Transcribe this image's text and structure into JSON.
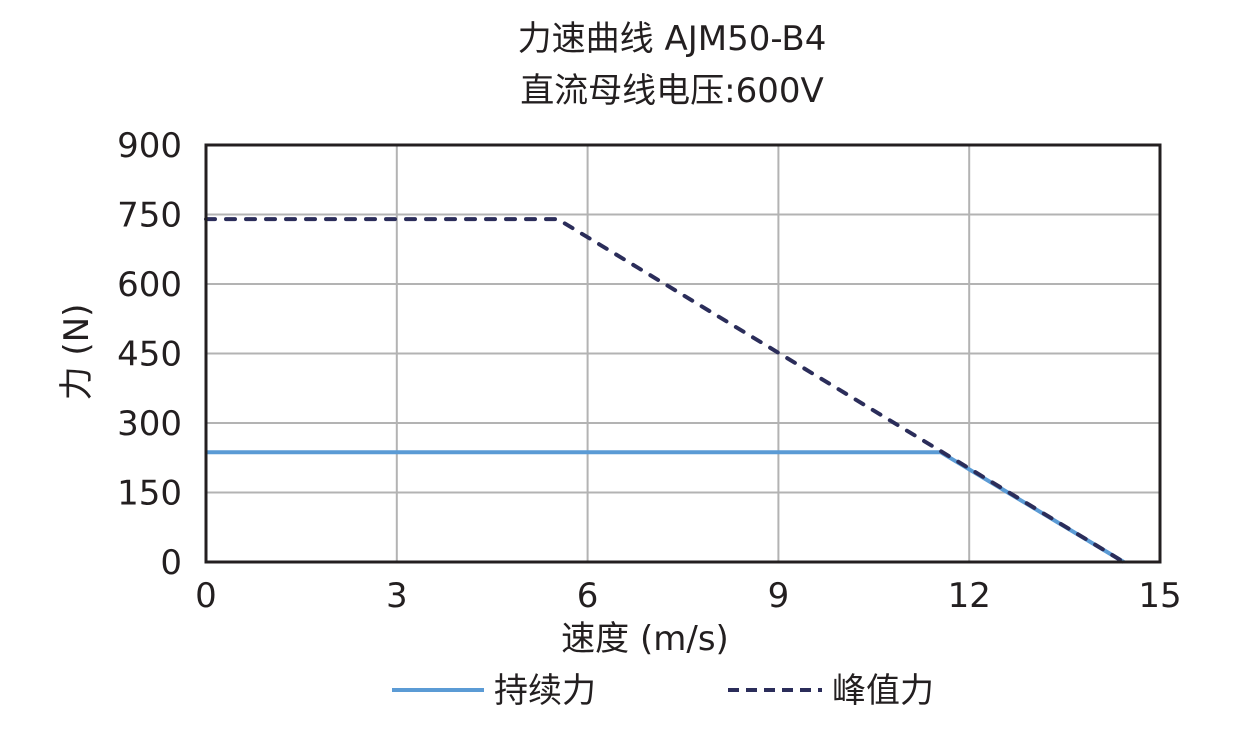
{
  "chart_data": {
    "type": "line",
    "title": "力速曲线 AJM50-B4",
    "subtitle": "直流母线电压:600V",
    "xlabel": "速度 (m/s)",
    "ylabel": "力 (N)",
    "xlim": [
      0,
      15
    ],
    "ylim": [
      0,
      900
    ],
    "xticks": [
      "0",
      "3",
      "6",
      "9",
      "12",
      "15"
    ],
    "yticks": [
      "0",
      "150",
      "300",
      "450",
      "600",
      "750",
      "900"
    ],
    "grid": true,
    "legend_position": "bottom",
    "series": [
      {
        "name": "持续力",
        "style": "solid",
        "color": "#5b9bd5",
        "x": [
          0,
          11.55,
          14.43
        ],
        "y": [
          237,
          237,
          0
        ]
      },
      {
        "name": "峰值力",
        "style": "dashed",
        "color": "#2b2d5a",
        "x": [
          0,
          5.53,
          14.43
        ],
        "y": [
          740,
          740,
          0
        ]
      }
    ]
  }
}
